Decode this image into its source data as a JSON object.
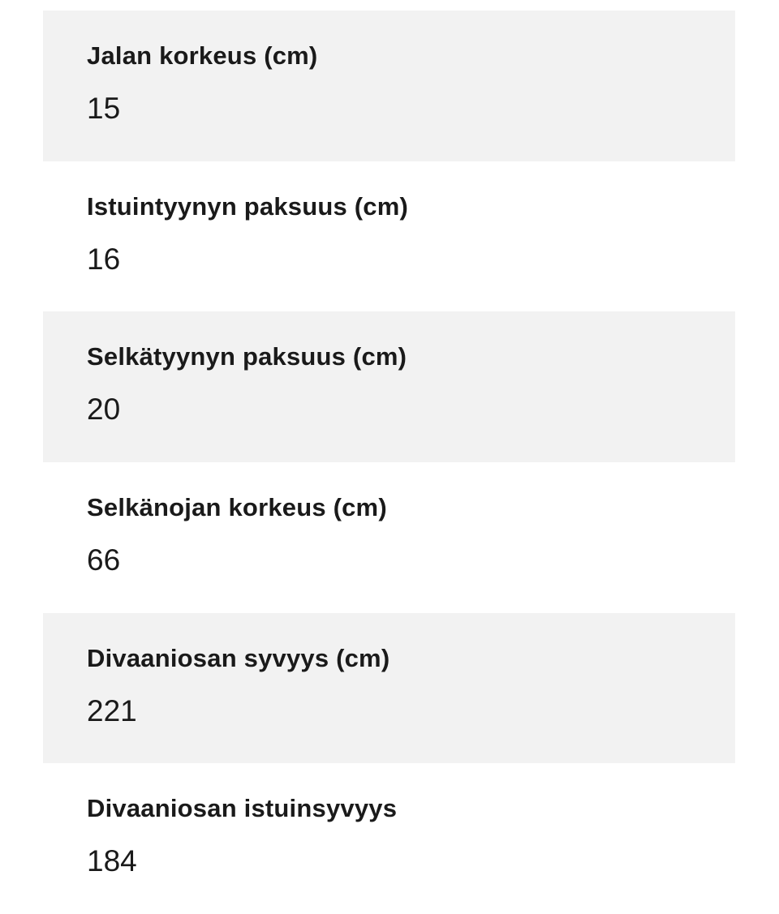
{
  "specs": [
    {
      "label": "Jalan korkeus (cm)",
      "value": "15"
    },
    {
      "label": "Istuintyynyn paksuus (cm)",
      "value": "16"
    },
    {
      "label": "Selkätyynyn paksuus (cm)",
      "value": "20"
    },
    {
      "label": "Selkänojan korkeus (cm)",
      "value": "66"
    },
    {
      "label": "Divaaniosan syvyys (cm)",
      "value": "221"
    },
    {
      "label": "Divaaniosan istuinsyvyys",
      "value": "184"
    }
  ]
}
